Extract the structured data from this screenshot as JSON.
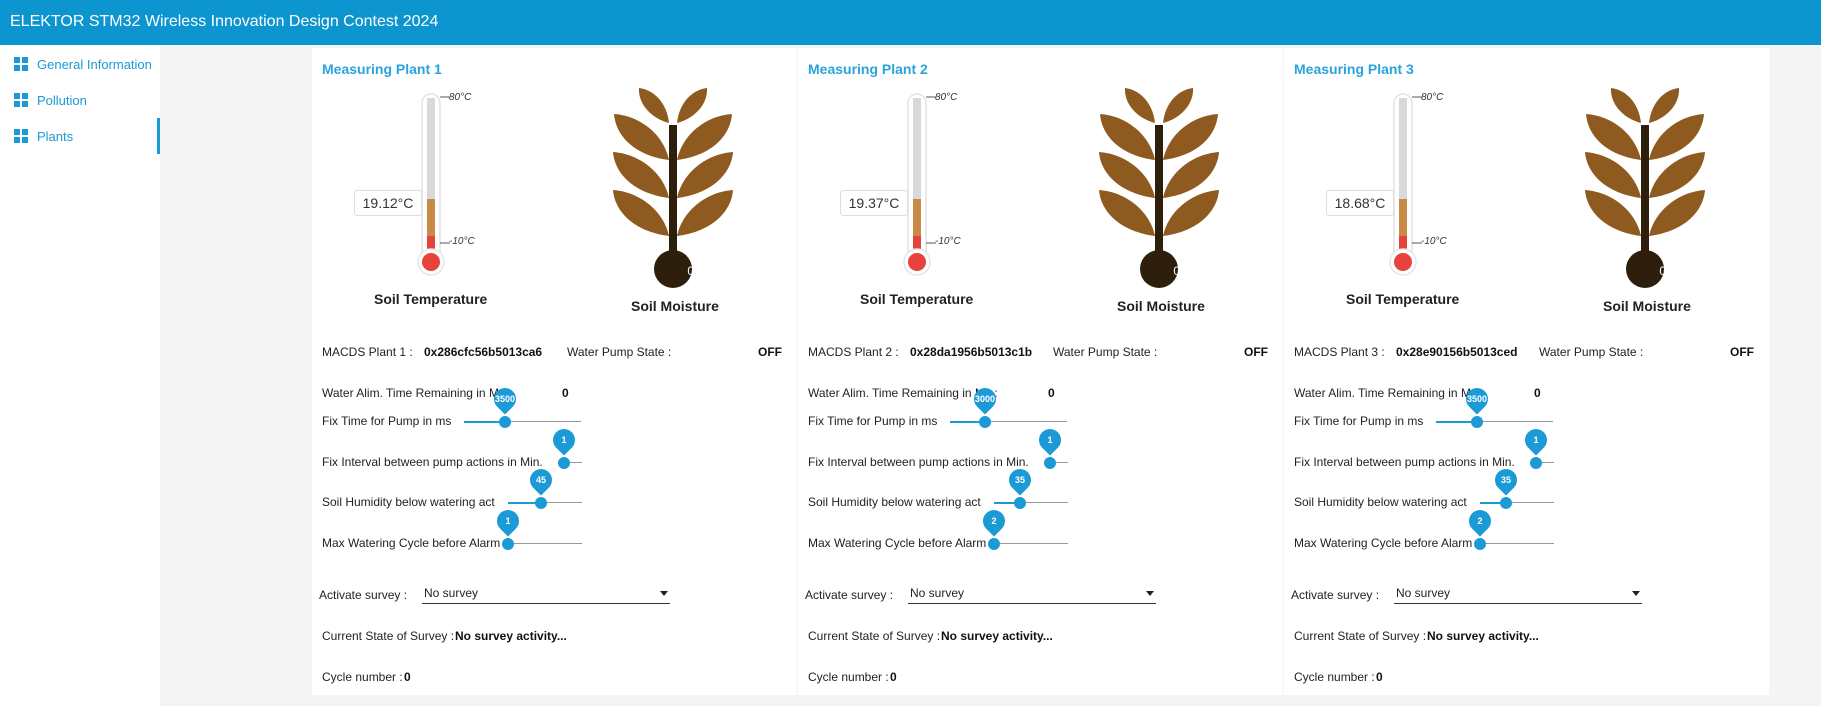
{
  "header": {
    "title": "ELEKTOR STM32 Wireless Innovation Design Contest 2024"
  },
  "sidebar": {
    "items": [
      {
        "label": "General Information",
        "icon": "dashboard-icon"
      },
      {
        "label": "Pollution",
        "icon": "dashboard-icon"
      },
      {
        "label": "Plants",
        "icon": "dashboard-icon",
        "active": true
      }
    ]
  },
  "colors": {
    "accent": "#0d95cf",
    "plant_leaf": "#8e5a1f",
    "stem": "#2e1f0c",
    "thermo_red": "#e8423d",
    "thermo_brown": "#b5813f"
  },
  "plants": [
    {
      "title": "Measuring Plant 1",
      "temperature": "19.12°C",
      "temp_max": "80°C",
      "temp_min": "-10°C",
      "temp_label": "Soil Temperature",
      "moisture": "0%",
      "moisture_label": "Soil Moisture",
      "macds_label": "MACDS Plant 1 :",
      "macds_value": "0x286cfc56b5013ca6",
      "pump_state_label": "Water Pump State :",
      "pump_state_value": "OFF",
      "water_time_label": "Water Alim. Time Remaining in Ms :",
      "water_time_value": "0",
      "sliders": [
        {
          "label": "Fix Time for Pump in ms",
          "value": "3500",
          "fraction": 0.35
        },
        {
          "label": "Fix Interval between pump actions in Min.",
          "value": "1",
          "fraction": 0.0
        },
        {
          "label": "Soil Humidity below watering act",
          "value": "45",
          "fraction": 0.45
        },
        {
          "label": "Max Watering Cycle before Alarm",
          "value": "1",
          "fraction": 0.0
        }
      ],
      "survey_label": "Activate survey :",
      "survey_value": "No survey",
      "current_state_label": "Current State of Survey :",
      "current_state_value": "No survey activity...",
      "cycle_label": "Cycle number :",
      "cycle_value": "0"
    },
    {
      "title": "Measuring Plant 2",
      "temperature": "19.37°C",
      "temp_max": "80°C",
      "temp_min": "-10°C",
      "temp_label": "Soil Temperature",
      "moisture": "0%",
      "moisture_label": "Soil Moisture",
      "macds_label": "MACDS Plant 2 :",
      "macds_value": "0x28da1956b5013c1b",
      "pump_state_label": "Water Pump State :",
      "pump_state_value": "OFF",
      "water_time_label": "Water Alim. Time Remaining in Ms :",
      "water_time_value": "0",
      "sliders": [
        {
          "label": "Fix Time for Pump in ms",
          "value": "3000",
          "fraction": 0.3
        },
        {
          "label": "Fix Interval between pump actions in Min.",
          "value": "1",
          "fraction": 0.0
        },
        {
          "label": "Soil Humidity below watering act",
          "value": "35",
          "fraction": 0.35
        },
        {
          "label": "Max Watering Cycle before Alarm",
          "value": "2",
          "fraction": 0.0
        }
      ],
      "survey_label": "Activate survey :",
      "survey_value": "No survey",
      "current_state_label": "Current State of Survey :",
      "current_state_value": "No survey activity...",
      "cycle_label": "Cycle number :",
      "cycle_value": "0"
    },
    {
      "title": "Measuring Plant 3",
      "temperature": "18.68°C",
      "temp_max": "80°C",
      "temp_min": "-10°C",
      "temp_label": "Soil Temperature",
      "moisture": "0%",
      "moisture_label": "Soil Moisture",
      "macds_label": "MACDS Plant 3 :",
      "macds_value": "0x28e90156b5013ced",
      "pump_state_label": "Water Pump State :",
      "pump_state_value": "OFF",
      "water_time_label": "Water Alim. Time Remaining in Ms :",
      "water_time_value": "0",
      "sliders": [
        {
          "label": "Fix Time for Pump in ms",
          "value": "3500",
          "fraction": 0.35
        },
        {
          "label": "Fix Interval between pump actions in Min.",
          "value": "1",
          "fraction": 0.0
        },
        {
          "label": "Soil Humidity below watering act",
          "value": "35",
          "fraction": 0.35
        },
        {
          "label": "Max Watering Cycle before Alarm",
          "value": "2",
          "fraction": 0.0
        }
      ],
      "survey_label": "Activate survey :",
      "survey_value": "No survey",
      "current_state_label": "Current State of Survey :",
      "current_state_value": "No survey activity...",
      "cycle_label": "Cycle number :",
      "cycle_value": "0"
    }
  ]
}
